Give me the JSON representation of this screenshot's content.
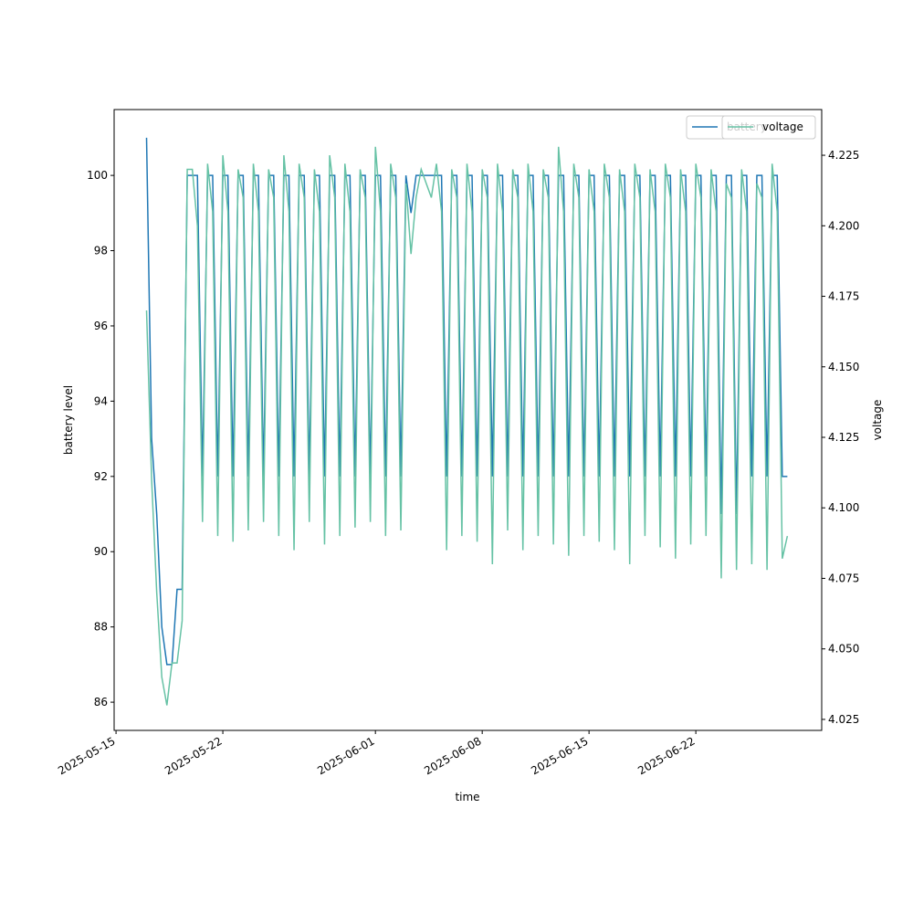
{
  "chart_data": {
    "type": "line",
    "xlabel": "time",
    "ylabel": "battery level",
    "y2label": "voltage",
    "x": [
      "2025-05-17 00:00",
      "2025-05-17 08:00",
      "2025-05-17 16:00",
      "2025-05-18 00:00",
      "2025-05-18 08:00",
      "2025-05-18 16:00",
      "2025-05-19 00:00",
      "2025-05-19 08:00",
      "2025-05-19 16:00",
      "2025-05-20 00:00",
      "2025-05-20 08:00",
      "2025-05-20 16:00",
      "2025-05-21 00:00",
      "2025-05-21 08:00",
      "2025-05-21 16:00",
      "2025-05-22 00:00",
      "2025-05-22 08:00",
      "2025-05-22 16:00",
      "2025-05-23 00:00",
      "2025-05-23 08:00",
      "2025-05-23 16:00",
      "2025-05-24 00:00",
      "2025-05-24 08:00",
      "2025-05-24 16:00",
      "2025-05-25 00:00",
      "2025-05-25 08:00",
      "2025-05-25 16:00",
      "2025-05-26 00:00",
      "2025-05-26 08:00",
      "2025-05-26 16:00",
      "2025-05-27 00:00",
      "2025-05-27 08:00",
      "2025-05-27 16:00",
      "2025-05-28 00:00",
      "2025-05-28 08:00",
      "2025-05-28 16:00",
      "2025-05-29 00:00",
      "2025-05-29 08:00",
      "2025-05-29 16:00",
      "2025-05-30 00:00",
      "2025-05-30 08:00",
      "2025-05-30 16:00",
      "2025-05-31 00:00",
      "2025-05-31 08:00",
      "2025-05-31 16:00",
      "2025-06-01 00:00",
      "2025-06-01 08:00",
      "2025-06-01 16:00",
      "2025-06-02 00:00",
      "2025-06-02 08:00",
      "2025-06-02 16:00",
      "2025-06-03 00:00",
      "2025-06-03 08:00",
      "2025-06-03 16:00",
      "2025-06-04 00:00",
      "2025-06-04 08:00",
      "2025-06-04 16:00",
      "2025-06-05 00:00",
      "2025-06-05 08:00",
      "2025-06-05 16:00",
      "2025-06-06 00:00",
      "2025-06-06 08:00",
      "2025-06-06 16:00",
      "2025-06-07 00:00",
      "2025-06-07 08:00",
      "2025-06-07 16:00",
      "2025-06-08 00:00",
      "2025-06-08 08:00",
      "2025-06-08 16:00",
      "2025-06-09 00:00",
      "2025-06-09 08:00",
      "2025-06-09 16:00",
      "2025-06-10 00:00",
      "2025-06-10 08:00",
      "2025-06-10 16:00",
      "2025-06-11 00:00",
      "2025-06-11 08:00",
      "2025-06-11 16:00",
      "2025-06-12 00:00",
      "2025-06-12 08:00",
      "2025-06-12 16:00",
      "2025-06-13 00:00",
      "2025-06-13 08:00",
      "2025-06-13 16:00",
      "2025-06-14 00:00",
      "2025-06-14 08:00",
      "2025-06-14 16:00",
      "2025-06-15 00:00",
      "2025-06-15 08:00",
      "2025-06-15 16:00",
      "2025-06-16 00:00",
      "2025-06-16 08:00",
      "2025-06-16 16:00",
      "2025-06-17 00:00",
      "2025-06-17 08:00",
      "2025-06-17 16:00",
      "2025-06-18 00:00",
      "2025-06-18 08:00",
      "2025-06-18 16:00",
      "2025-06-19 00:00",
      "2025-06-19 08:00",
      "2025-06-19 16:00",
      "2025-06-20 00:00",
      "2025-06-20 08:00",
      "2025-06-20 16:00",
      "2025-06-21 00:00",
      "2025-06-21 08:00",
      "2025-06-21 16:00",
      "2025-06-22 00:00",
      "2025-06-22 08:00",
      "2025-06-22 16:00",
      "2025-06-23 00:00",
      "2025-06-23 08:00",
      "2025-06-23 16:00",
      "2025-06-24 00:00",
      "2025-06-24 08:00",
      "2025-06-24 16:00",
      "2025-06-25 00:00",
      "2025-06-25 08:00",
      "2025-06-25 16:00",
      "2025-06-26 00:00",
      "2025-06-26 08:00",
      "2025-06-26 16:00",
      "2025-06-27 00:00",
      "2025-06-27 08:00",
      "2025-06-27 16:00",
      "2025-06-28 00:00"
    ],
    "series": [
      {
        "name": "battery",
        "color": "#1f77b4",
        "values": [
          101,
          93,
          91,
          88,
          87,
          87,
          89,
          89,
          100,
          100,
          100,
          92,
          100,
          100,
          92,
          100,
          100,
          92,
          100,
          100,
          92,
          100,
          100,
          92,
          100,
          100,
          92,
          100,
          100,
          92,
          100,
          100,
          92,
          100,
          100,
          92,
          100,
          100,
          92,
          100,
          100,
          92,
          100,
          100,
          92,
          100,
          100,
          92,
          100,
          100,
          92,
          100,
          99,
          100,
          100,
          100,
          100,
          100,
          100,
          92,
          100,
          100,
          92,
          100,
          100,
          92,
          100,
          100,
          92,
          100,
          100,
          92,
          100,
          100,
          92,
          100,
          100,
          92,
          100,
          100,
          92,
          100,
          100,
          92,
          100,
          100,
          92,
          100,
          100,
          92,
          100,
          100,
          92,
          100,
          100,
          92,
          100,
          100,
          92,
          100,
          100,
          92,
          100,
          100,
          92,
          100,
          100,
          92,
          100,
          100,
          92,
          100,
          100,
          91,
          100,
          100,
          91,
          100,
          100,
          92,
          100,
          100,
          92,
          100,
          100,
          92,
          92
        ]
      },
      {
        "name": "voltage",
        "color": "#66c2a5",
        "axis": "y2",
        "values": [
          4.17,
          4.11,
          4.07,
          4.04,
          4.03,
          4.045,
          4.045,
          4.06,
          4.22,
          4.22,
          4.2,
          4.095,
          4.222,
          4.205,
          4.09,
          4.225,
          4.205,
          4.088,
          4.22,
          4.21,
          4.092,
          4.222,
          4.205,
          4.095,
          4.22,
          4.21,
          4.09,
          4.225,
          4.205,
          4.085,
          4.222,
          4.21,
          4.095,
          4.22,
          4.205,
          4.087,
          4.225,
          4.21,
          4.09,
          4.222,
          4.205,
          4.093,
          4.22,
          4.21,
          4.095,
          4.228,
          4.205,
          4.09,
          4.222,
          4.21,
          4.092,
          4.215,
          4.19,
          4.21,
          4.22,
          4.215,
          4.21,
          4.222,
          4.205,
          4.085,
          4.22,
          4.21,
          4.09,
          4.222,
          4.205,
          4.088,
          4.22,
          4.21,
          4.08,
          4.222,
          4.205,
          4.092,
          4.22,
          4.21,
          4.085,
          4.222,
          4.205,
          4.09,
          4.22,
          4.21,
          4.087,
          4.228,
          4.205,
          4.083,
          4.222,
          4.21,
          4.09,
          4.22,
          4.205,
          4.088,
          4.222,
          4.21,
          4.085,
          4.22,
          4.205,
          4.08,
          4.222,
          4.21,
          4.09,
          4.22,
          4.205,
          4.086,
          4.222,
          4.21,
          4.082,
          4.22,
          4.205,
          4.087,
          4.222,
          4.21,
          4.09,
          4.22,
          4.205,
          4.075,
          4.215,
          4.21,
          4.078,
          4.22,
          4.205,
          4.08,
          4.215,
          4.21,
          4.078,
          4.222,
          4.205,
          4.082,
          4.09
        ]
      }
    ],
    "xlim": [
      "2025-05-14 21:00",
      "2025-06-30 06:00"
    ],
    "xticks": [
      "2025-05-15",
      "2025-05-22",
      "2025-06-01",
      "2025-06-08",
      "2025-06-15",
      "2025-06-22"
    ],
    "ylim": [
      85.25,
      101.75
    ],
    "yticks": [
      86,
      88,
      90,
      92,
      94,
      96,
      98,
      100
    ],
    "y2lim": [
      4.0211,
      4.2412
    ],
    "y2ticks": [
      4.025,
      {
        "value": 4.05,
        "label": "4.050"
      },
      4.075,
      {
        "value": 4.1,
        "label": "4.100"
      },
      4.125,
      {
        "value": 4.15,
        "label": "4.150"
      },
      4.175,
      {
        "value": 4.2,
        "label": "4.200"
      },
      4.225
    ],
    "legend": "upper right"
  }
}
